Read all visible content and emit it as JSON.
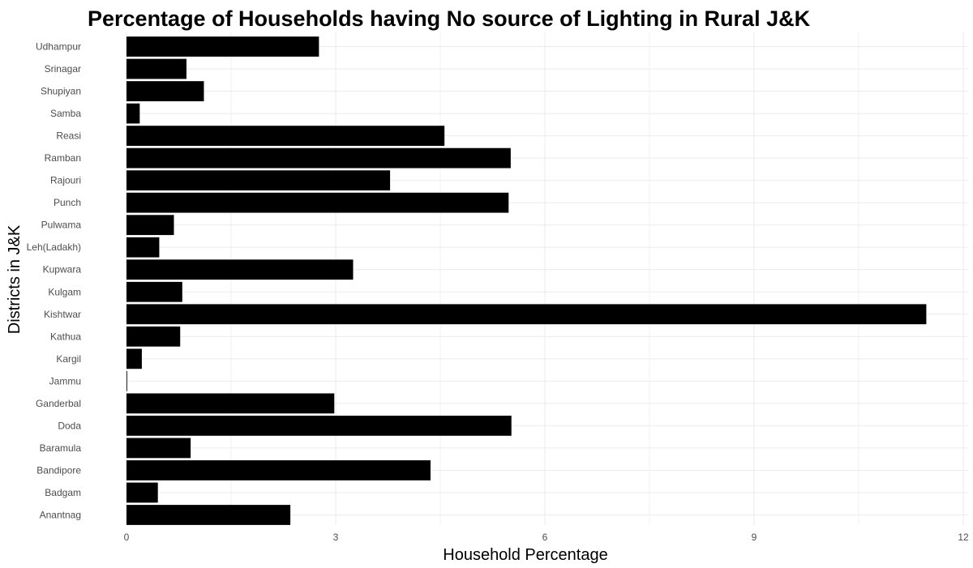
{
  "chart_data": {
    "type": "bar",
    "orientation": "horizontal",
    "title": "Percentage of Households having No source of Lighting in Rural J&K",
    "xlabel": "Household Percentage",
    "ylabel": "Districts in J&K",
    "xlim": [
      0,
      12
    ],
    "x_ticks": [
      "0",
      "3",
      "6",
      "9",
      "12"
    ],
    "grid": true,
    "bar_color": "#000000",
    "categories": [
      "Anantnag",
      "Badgam",
      "Bandipore",
      "Baramula",
      "Doda",
      "Ganderbal",
      "Jammu",
      "Kargil",
      "Kathua",
      "Kishtwar",
      "Kulgam",
      "Kupwara",
      "Leh(Ladakh)",
      "Pulwama",
      "Punch",
      "Rajouri",
      "Ramban",
      "Reasi",
      "Samba",
      "Shupiyan",
      "Srinagar",
      "Udhampur"
    ],
    "values": [
      2.35,
      0.45,
      4.36,
      0.92,
      5.52,
      2.98,
      0.01,
      0.22,
      0.77,
      11.47,
      0.8,
      3.25,
      0.47,
      0.68,
      5.48,
      3.78,
      5.51,
      4.56,
      0.19,
      1.11,
      0.86,
      2.76
    ]
  }
}
